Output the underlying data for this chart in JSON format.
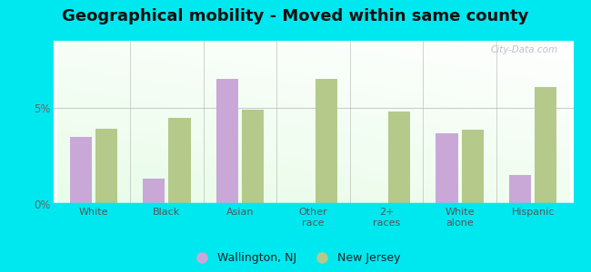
{
  "title": "Geographical mobility - Moved within same county",
  "categories": [
    "White",
    "Black",
    "Asian",
    "Other\nrace",
    "2+\nraces",
    "White\nalone",
    "Hispanic"
  ],
  "wallington_values": [
    3.5,
    1.3,
    6.5,
    0.0,
    0.0,
    3.7,
    1.5
  ],
  "nj_values": [
    3.9,
    4.5,
    4.9,
    6.5,
    4.8,
    3.85,
    6.1
  ],
  "wallington_color": "#c9a8d8",
  "nj_color": "#b5c98a",
  "ylim": [
    0,
    8.5
  ],
  "ytick_labels": [
    "0%",
    "5%"
  ],
  "ytick_vals": [
    0,
    5
  ],
  "outer_background": "#00e8ef",
  "title_fontsize": 13,
  "legend_wallington": "Wallington, NJ",
  "legend_nj": "New Jersey",
  "watermark": "City-Data.com"
}
